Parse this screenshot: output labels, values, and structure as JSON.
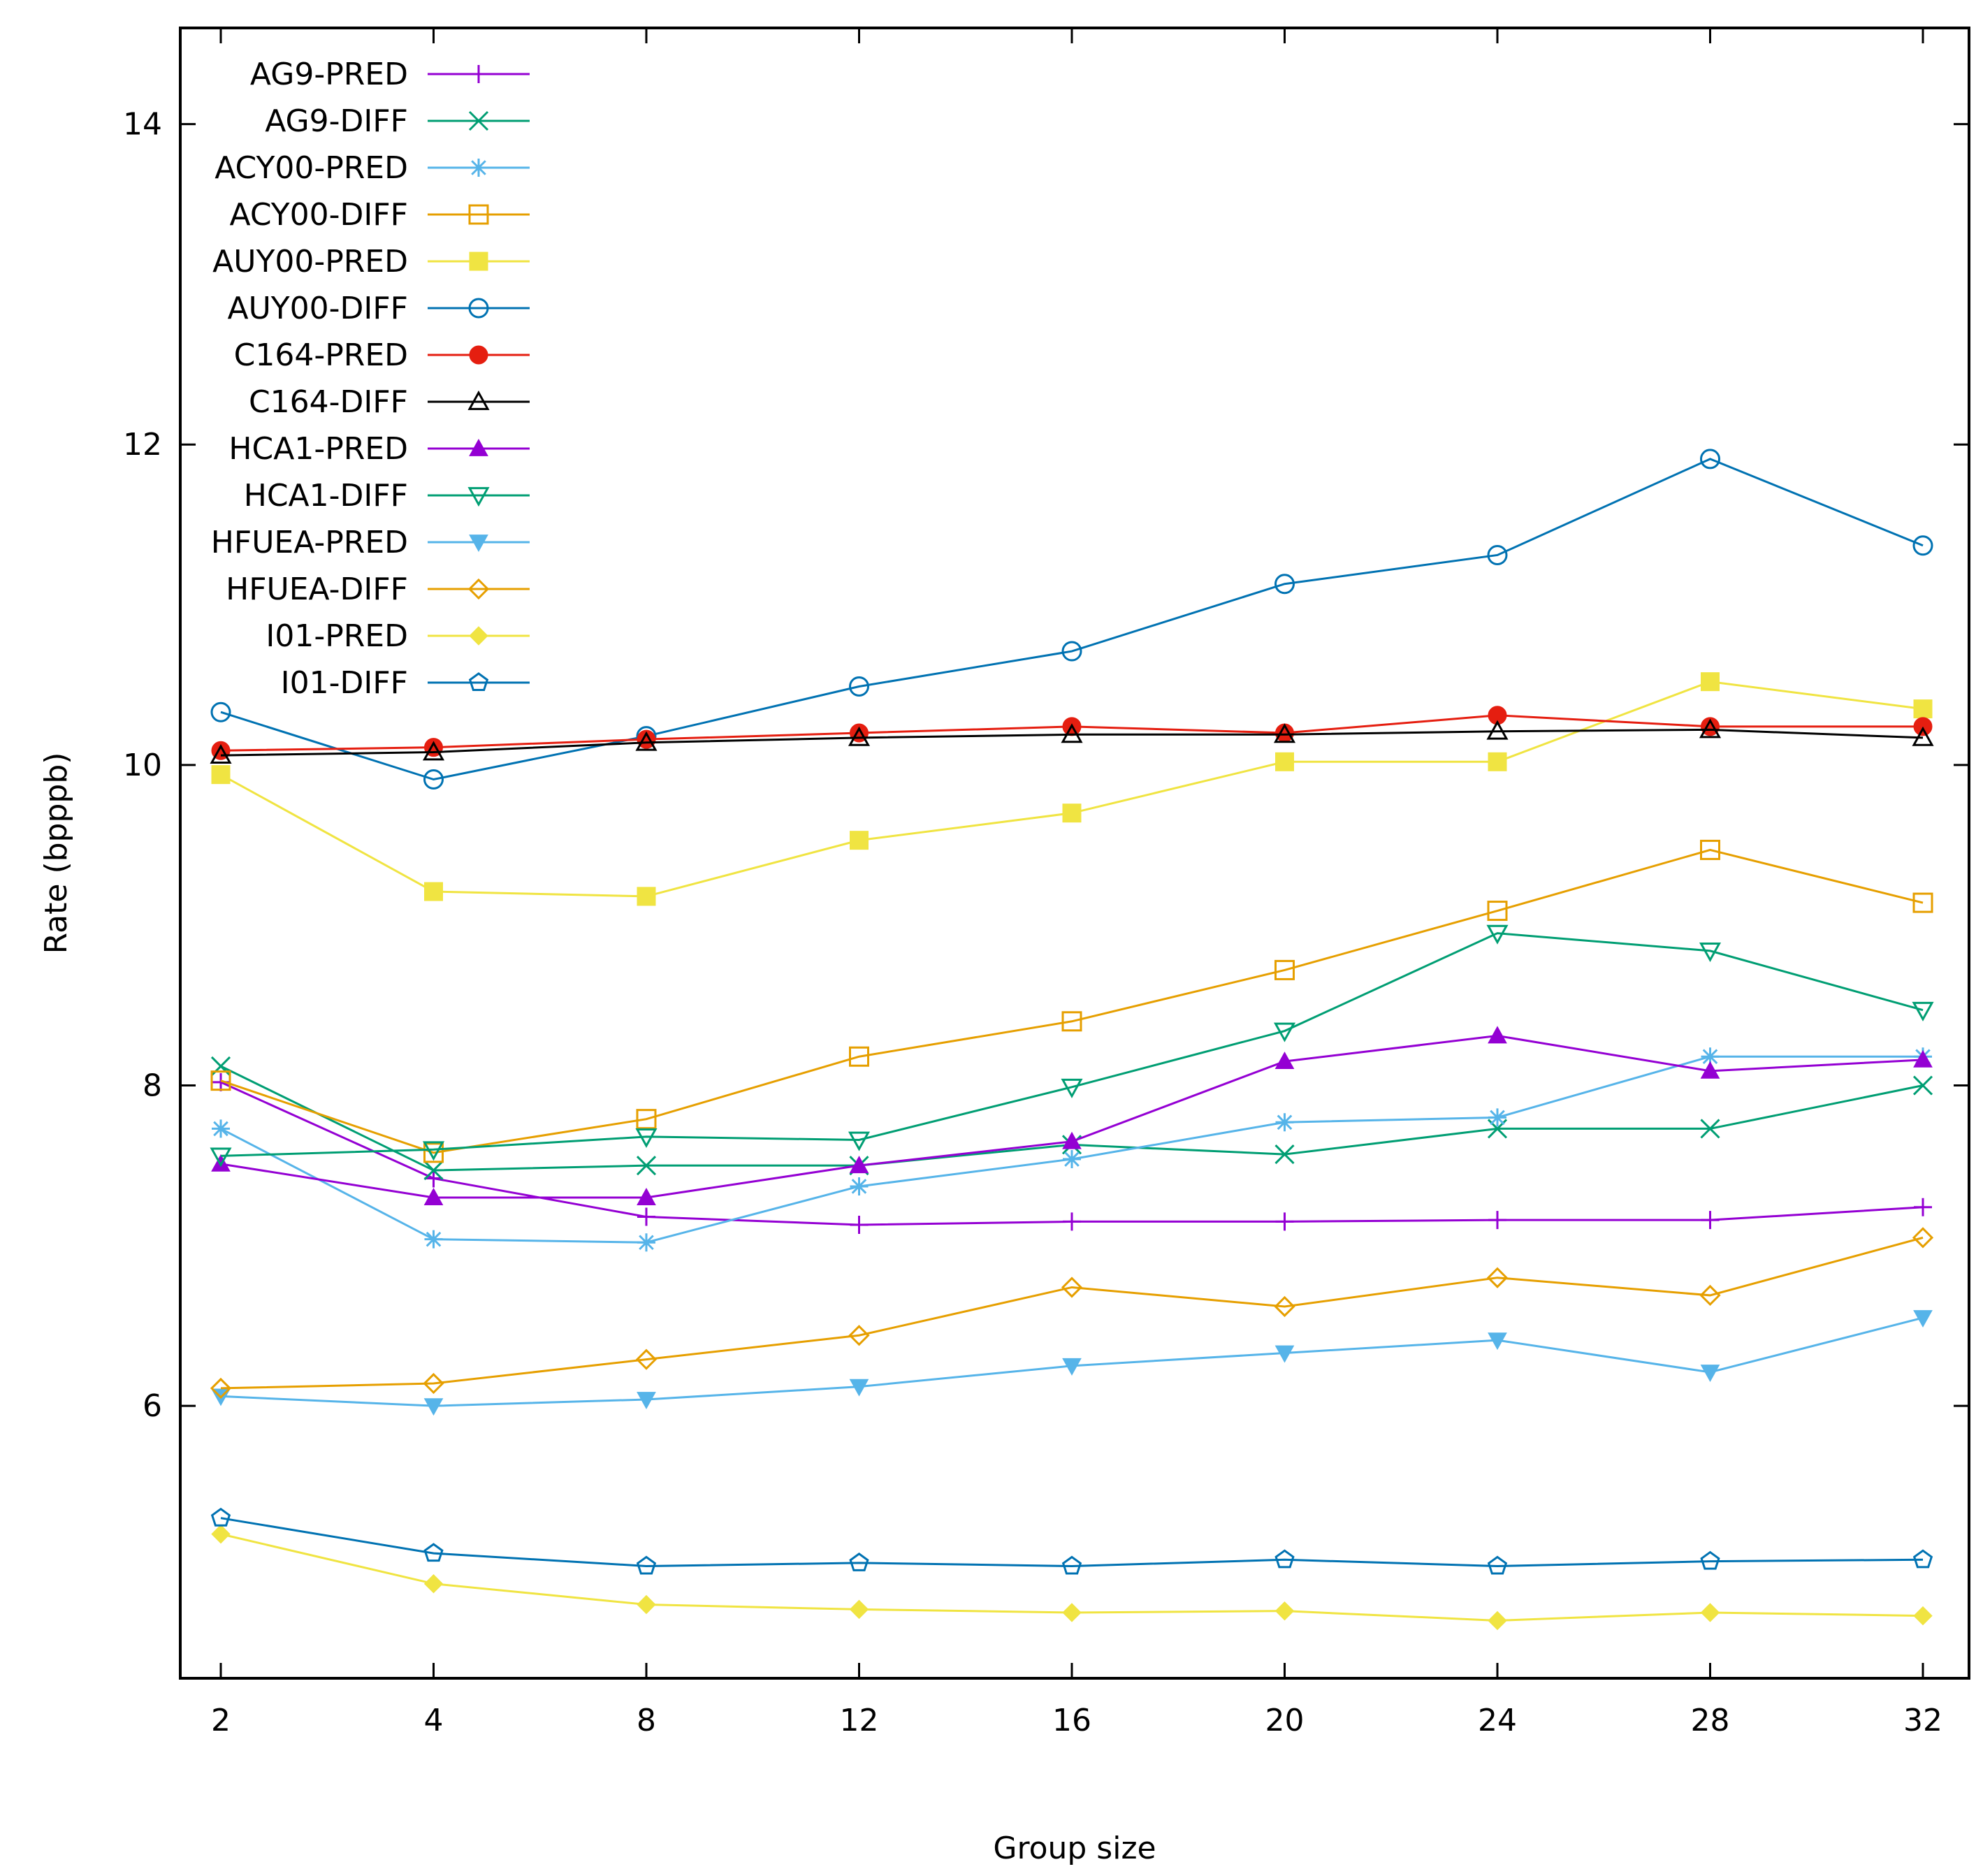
{
  "chart_data": {
    "type": "line",
    "title": "",
    "xlabel": "Group size",
    "ylabel": "Rate (bpppb)",
    "x": [
      2,
      4,
      8,
      12,
      16,
      20,
      24,
      28,
      32
    ],
    "x_tick_labels": [
      "2",
      "4",
      "8",
      "12",
      "16",
      "20",
      "24",
      "28",
      "32"
    ],
    "y_ticks": [
      6,
      8,
      10,
      12,
      14
    ],
    "y_tick_labels": [
      "6",
      "8",
      "10",
      "12",
      "14"
    ],
    "ylim": [
      4.3,
      14.6
    ],
    "grid": false,
    "legend_position": "top-left",
    "series": [
      {
        "name": "AG9-PRED",
        "color": "#9400d3",
        "marker": "plus",
        "values": [
          8.02,
          7.42,
          7.18,
          7.13,
          7.15,
          7.15,
          7.16,
          7.16,
          7.24
        ]
      },
      {
        "name": "AG9-DIFF",
        "color": "#009e73",
        "marker": "cross",
        "values": [
          8.12,
          7.47,
          7.5,
          7.5,
          7.63,
          7.57,
          7.73,
          7.73,
          8.0
        ]
      },
      {
        "name": "ACY00-PRED",
        "color": "#56b4e9",
        "marker": "star",
        "values": [
          7.73,
          7.04,
          7.02,
          7.37,
          7.54,
          7.77,
          7.8,
          8.18,
          8.18
        ]
      },
      {
        "name": "ACY00-DIFF",
        "color": "#e69f00",
        "marker": "square-open",
        "values": [
          8.03,
          7.58,
          7.79,
          8.18,
          8.4,
          8.72,
          9.09,
          9.47,
          9.14
        ]
      },
      {
        "name": "AUY00-PRED",
        "color": "#f0e442",
        "marker": "square-filled",
        "values": [
          9.94,
          9.21,
          9.18,
          9.53,
          9.7,
          10.02,
          10.02,
          10.52,
          10.35
        ]
      },
      {
        "name": "AUY00-DIFF",
        "color": "#0072b2",
        "marker": "circle-open",
        "values": [
          10.33,
          9.91,
          10.18,
          10.49,
          10.71,
          11.13,
          11.31,
          11.91,
          11.37
        ]
      },
      {
        "name": "C164-PRED",
        "color": "#e51e10",
        "marker": "circle-filled",
        "values": [
          10.09,
          10.11,
          10.16,
          10.2,
          10.24,
          10.2,
          10.31,
          10.24,
          10.24
        ]
      },
      {
        "name": "C164-DIFF",
        "color": "#000000",
        "marker": "triangle-open",
        "values": [
          10.06,
          10.08,
          10.14,
          10.17,
          10.19,
          10.19,
          10.21,
          10.22,
          10.17
        ]
      },
      {
        "name": "HCA1-PRED",
        "color": "#9400d3",
        "marker": "triangle-filled",
        "values": [
          7.51,
          7.3,
          7.3,
          7.5,
          7.65,
          8.15,
          8.31,
          8.09,
          8.16
        ]
      },
      {
        "name": "HCA1-DIFF",
        "color": "#009e73",
        "marker": "triangle-down-open",
        "values": [
          7.56,
          7.6,
          7.68,
          7.66,
          7.99,
          8.34,
          8.95,
          8.84,
          8.47
        ]
      },
      {
        "name": "HFUEA-PRED",
        "color": "#56b4e9",
        "marker": "triangle-down-filled",
        "values": [
          6.06,
          6.0,
          6.04,
          6.12,
          6.25,
          6.33,
          6.41,
          6.21,
          6.55
        ]
      },
      {
        "name": "HFUEA-DIFF",
        "color": "#e69f00",
        "marker": "diamond-open",
        "values": [
          6.11,
          6.14,
          6.29,
          6.44,
          6.74,
          6.62,
          6.8,
          6.69,
          7.05
        ]
      },
      {
        "name": "I01-PRED",
        "color": "#f0e442",
        "marker": "diamond-filled",
        "values": [
          5.2,
          4.89,
          4.76,
          4.73,
          4.71,
          4.72,
          4.66,
          4.71,
          4.69
        ]
      },
      {
        "name": "I01-DIFF",
        "color": "#0072b2",
        "marker": "pentagon-open",
        "values": [
          5.3,
          5.08,
          5.0,
          5.02,
          5.0,
          5.04,
          5.0,
          5.03,
          5.04
        ]
      }
    ]
  }
}
